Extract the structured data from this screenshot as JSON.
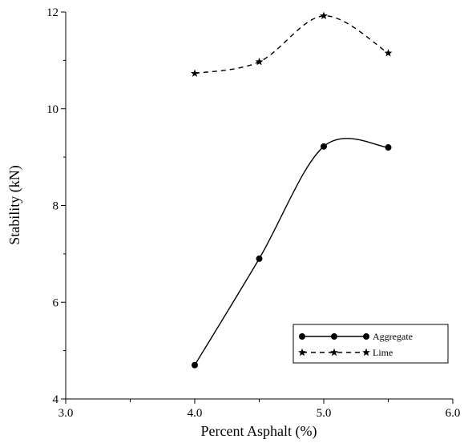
{
  "chart_data": {
    "type": "line",
    "xlabel": "Percent Asphalt (%)",
    "ylabel": "Stability (kN)",
    "xlim": [
      3.0,
      6.0
    ],
    "ylim": [
      4,
      12
    ],
    "xticks": [
      "3.0",
      "4.0",
      "5.0",
      "6.0"
    ],
    "yticks": [
      "4",
      "6",
      "8",
      "10",
      "12"
    ],
    "grid": false,
    "legend_position": "bottom-right",
    "series": [
      {
        "name": "Aggregate",
        "x": [
          4.0,
          4.5,
          5.0,
          5.5
        ],
        "y": [
          4.7,
          6.9,
          9.22,
          9.2
        ],
        "marker": "circle",
        "line_style": "solid",
        "color": "#000000"
      },
      {
        "name": "Lime",
        "x": [
          4.0,
          4.5,
          5.0,
          5.5
        ],
        "y": [
          10.73,
          10.97,
          11.92,
          11.15
        ],
        "marker": "star",
        "line_style": "dashed",
        "color": "#000000"
      }
    ]
  }
}
